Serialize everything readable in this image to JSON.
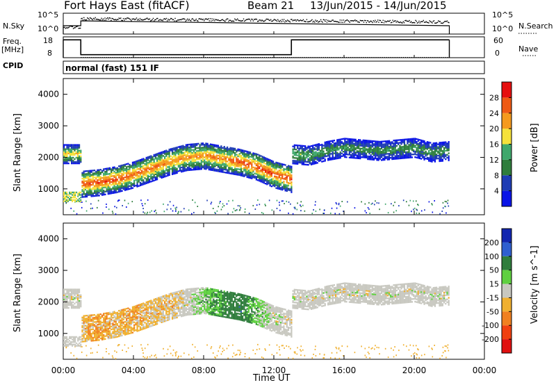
{
  "header": {
    "station": "Fort Hays East (fitACF)",
    "beam": "Beam 21",
    "dates": "13/Jun/2015 - 14/Jun/2015"
  },
  "noise_panel": {
    "left_label": "N.Sky",
    "right_label": "N.Search",
    "left_ticks": [
      "10^5",
      "10^0"
    ],
    "right_ticks": [
      "10^5",
      "10^0"
    ]
  },
  "freq_panel": {
    "left_label_line1": "Freq.",
    "left_label_line2": "[MHz]",
    "right_label": "Nave",
    "left_ticks": [
      "18",
      "8"
    ],
    "right_ticks": [
      "60",
      "0"
    ]
  },
  "cpid": {
    "label": "CPID",
    "mode": "normal (fast) 151 IF"
  },
  "xaxis": {
    "label": "Time UT",
    "ticks": [
      "00:00",
      "04:00",
      "08:00",
      "12:00",
      "16:00",
      "20:00",
      "00:00"
    ]
  },
  "power_panel": {
    "ylabel": "Slant Range [km]",
    "yticks": [
      "1000",
      "2000",
      "3000",
      "4000"
    ],
    "colorbar_label": "Power [dB]",
    "colorbar_ticks": [
      "28",
      "24",
      "20",
      "16",
      "12",
      "8",
      "4"
    ],
    "colors": [
      "#0a14e6",
      "#1e3cb4",
      "#2f7d3c",
      "#3fa86c",
      "#f5e13a",
      "#f59a1e",
      "#ef5a14",
      "#e60f0f"
    ]
  },
  "velocity_panel": {
    "ylabel": "Slant Range [km]",
    "yticks": [
      "1000",
      "2000",
      "3000",
      "4000"
    ],
    "colorbar_label": "Velocity [m s^-1]",
    "colorbar_ticks": [
      "200",
      "100",
      "50",
      "15",
      "-15",
      "-50",
      "-100",
      "-200"
    ],
    "colors": [
      "#1226b0",
      "#2f5fd0",
      "#2f7d3c",
      "#5fd040",
      "#c8c8c0",
      "#f0b030",
      "#f08020",
      "#f04010",
      "#e01010"
    ]
  },
  "chart_data": [
    {
      "type": "scatter",
      "name": "noise",
      "x_hours": [
        0,
        1,
        1,
        22
      ],
      "sky_noise_level": [
        0.35,
        0.35,
        0.75,
        0.6
      ],
      "y_scale": "log"
    },
    {
      "type": "line",
      "name": "frequency",
      "x_hours": [
        0,
        1,
        1,
        13,
        13,
        22
      ],
      "freq_mhz": [
        18,
        18,
        8,
        8,
        18,
        18
      ],
      "nave": [
        0,
        0,
        0,
        0,
        0,
        0
      ]
    },
    {
      "type": "heatmap",
      "name": "power",
      "x_label": "Time UT",
      "y_label": "Slant Range [km]",
      "x_range_hours": [
        0,
        24
      ],
      "y_range_km": [
        180,
        4500
      ],
      "z_range_db": [
        0,
        32
      ],
      "backscatter_band": {
        "x_hours": [
          0,
          1,
          1,
          2,
          3,
          4,
          5,
          6,
          7,
          8,
          9,
          10,
          11,
          12,
          13,
          13,
          14,
          15,
          16,
          17,
          18,
          19,
          20,
          21,
          22
        ],
        "center_km": [
          2100,
          2100,
          1150,
          1200,
          1300,
          1450,
          1650,
          1850,
          2000,
          2050,
          1950,
          1850,
          1700,
          1450,
          1300,
          2100,
          2050,
          2200,
          2300,
          2250,
          2200,
          2250,
          2300,
          2150,
          2200
        ],
        "peak_power_db": [
          20,
          20,
          28,
          28,
          28,
          26,
          26,
          24,
          24,
          24,
          24,
          28,
          28,
          28,
          28,
          16,
          14,
          12,
          12,
          12,
          12,
          12,
          12,
          12,
          12
        ]
      }
    },
    {
      "type": "heatmap",
      "name": "velocity",
      "x_label": "Time UT",
      "y_label": "Slant Range [km]",
      "x_range_hours": [
        0,
        24
      ],
      "y_range_km": [
        180,
        4500
      ],
      "z_range_ms": [
        -250,
        250
      ],
      "backscatter_band": {
        "x_hours": [
          0,
          1,
          1,
          2,
          3,
          4,
          5,
          6,
          7,
          8,
          9,
          10,
          11,
          12,
          13,
          13,
          14,
          15,
          16,
          17,
          18,
          19,
          20,
          21,
          22
        ],
        "center_km": [
          2100,
          2100,
          1150,
          1200,
          1300,
          1450,
          1650,
          1850,
          2000,
          2050,
          1950,
          1850,
          1700,
          1450,
          1300,
          2100,
          2050,
          2200,
          2300,
          2250,
          2200,
          2250,
          2300,
          2150,
          2200
        ],
        "velocity_ms": [
          0,
          0,
          -20,
          -30,
          -20,
          -25,
          -15,
          -20,
          0,
          20,
          40,
          60,
          20,
          0,
          0,
          0,
          0,
          0,
          0,
          0,
          0,
          0,
          0,
          0,
          0
        ]
      }
    }
  ]
}
